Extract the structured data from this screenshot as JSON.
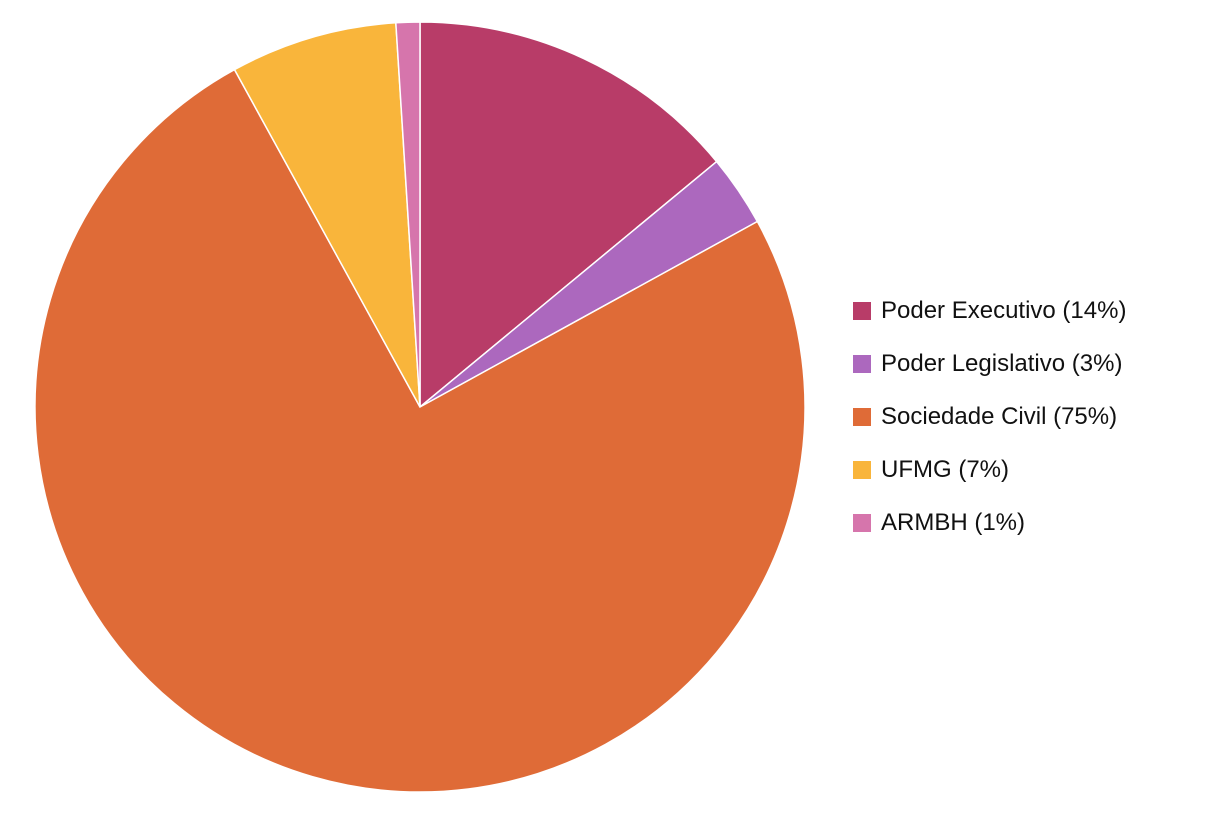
{
  "chart_data": {
    "type": "pie",
    "start_angle": "top, clockwise",
    "legend_position": "right",
    "slices": [
      {
        "label": "Poder Executivo (14%)",
        "value": 14,
        "color": "#B83C68"
      },
      {
        "label": "Poder Legislativo (3%)",
        "value": 3,
        "color": "#AC68BE"
      },
      {
        "label": "Sociedade Civil (75%)",
        "value": 75,
        "color": "#DF6B37"
      },
      {
        "label": "UFMG (7%)",
        "value": 7,
        "color": "#F9B53B"
      },
      {
        "label": "ARMBH (1%)",
        "value": 1,
        "color": "#D675AC"
      }
    ]
  }
}
